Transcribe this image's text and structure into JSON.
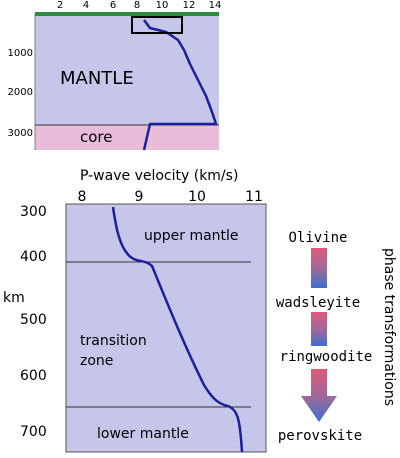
{
  "top": {
    "x_ticks": [
      "2",
      "4",
      "6",
      "8",
      "10",
      "12",
      "14"
    ],
    "y_ticks": [
      "1000",
      "2000",
      "3000"
    ],
    "mantle_label": "MANTLE",
    "core_label": "core"
  },
  "bottom": {
    "title": "P-wave velocity (km/s)",
    "x_ticks": [
      "8",
      "9",
      "10",
      "11"
    ],
    "y_ticks": [
      "300",
      "400",
      "500",
      "600",
      "700"
    ],
    "y_unit": "km",
    "zones": {
      "upper": "upper mantle",
      "transition_1": "transition",
      "transition_2": "zone",
      "lower": "lower mantle"
    }
  },
  "phases": {
    "title": "phase transformations",
    "olivine": "Olivine",
    "wadsleyite": "wadsleyite",
    "ringwoodite": "ringwoodite",
    "perovskite": "perovskite"
  },
  "colors": {
    "panel": "#c6c6ea",
    "core": "#e9bcd9",
    "curve": "#1a1f9c",
    "green_bar": "#2e8b3e",
    "bar_top": "#e05a78",
    "bar_bottom": "#3b6fd1"
  }
}
